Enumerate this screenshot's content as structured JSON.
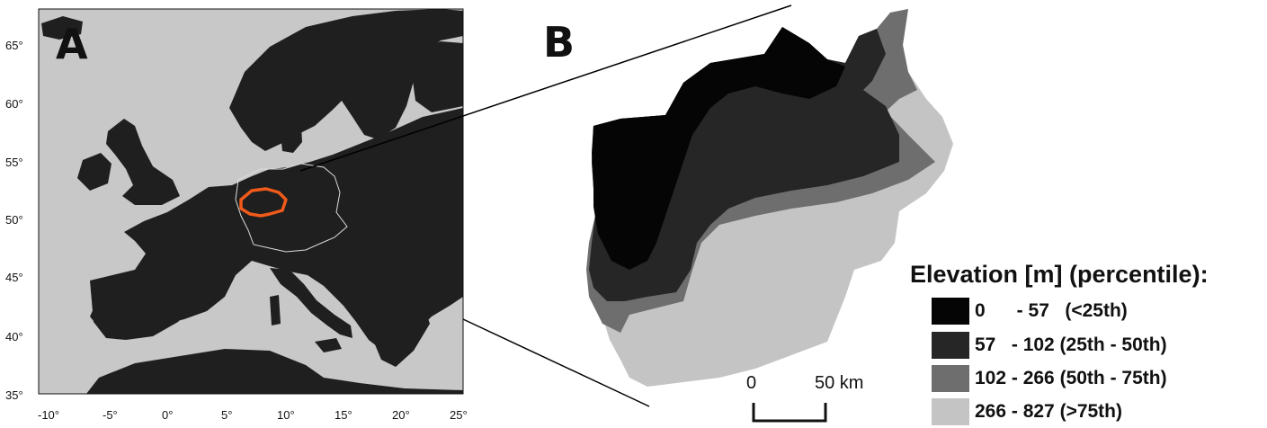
{
  "panels": {
    "a_label": "A",
    "b_label": "B"
  },
  "map_a": {
    "lat_ticks": [
      "65°",
      "60°",
      "55°",
      "50°",
      "45°",
      "40°",
      "35°"
    ],
    "lon_ticks": [
      "-10°",
      "-5°",
      "0°",
      "5°",
      "10°",
      "15°",
      "20°",
      "25°"
    ],
    "colors": {
      "sea": "#c8c8c8",
      "land": "#1f1f1f",
      "highlight": "#f05a1a",
      "border": "#dcdcdc"
    }
  },
  "legend": {
    "title": "Elevation [m] (percentile):",
    "items": [
      {
        "text": "0      - 57   (<25th)",
        "color": "#050505"
      },
      {
        "text": "57   - 102 (25th - 50th)",
        "color": "#262626"
      },
      {
        "text": "102 - 266 (50th - 75th)",
        "color": "#6e6e6e"
      },
      {
        "text": "266 - 827 (>75th)",
        "color": "#c4c4c4"
      }
    ]
  },
  "scalebar": {
    "start": "0",
    "end": "50 km"
  }
}
